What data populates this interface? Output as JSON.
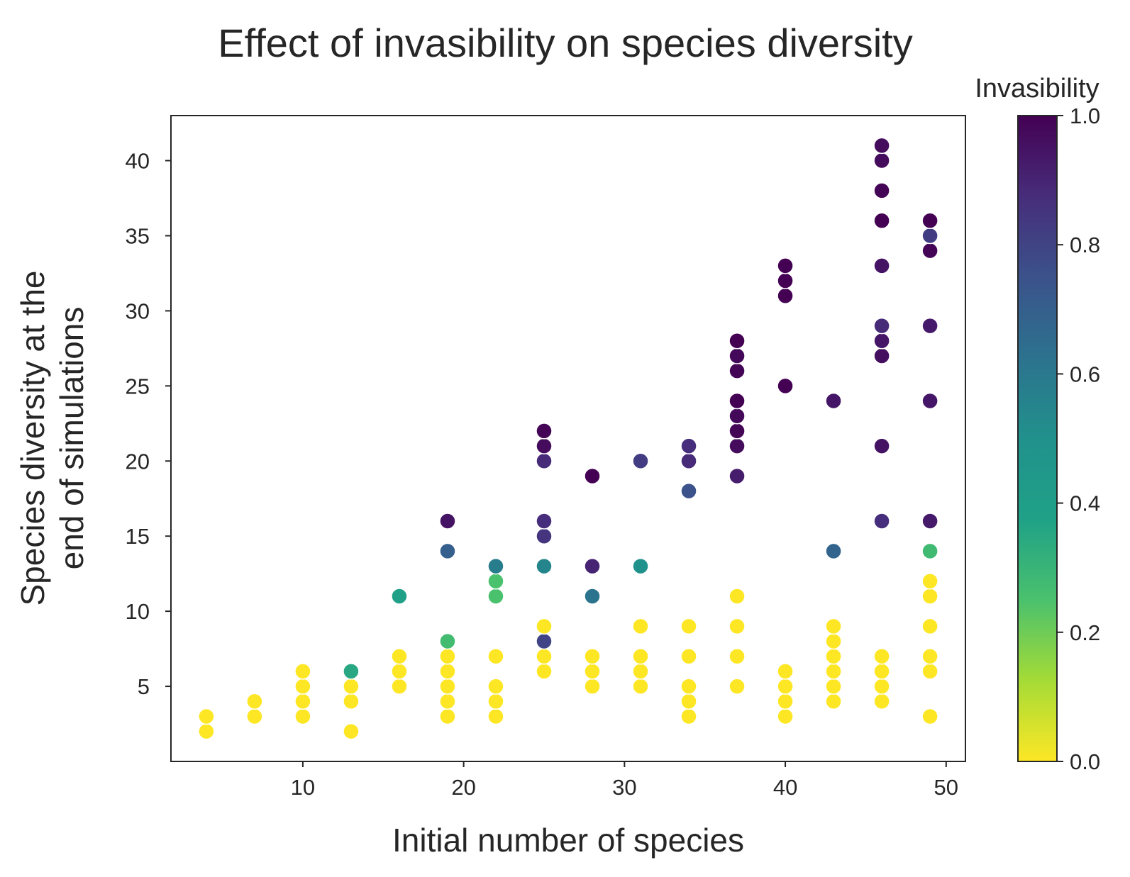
{
  "chart_data": {
    "type": "scatter",
    "title": "Effect of invasibility on species diversity",
    "xlabel": "Initial number of species",
    "ylabel": [
      "Species diversity at the",
      "end of simulations"
    ],
    "xlim": [
      1.8,
      51.2
    ],
    "ylim": [
      0,
      43
    ],
    "xticks": [
      10,
      20,
      30,
      40,
      50
    ],
    "yticks": [
      5,
      10,
      15,
      20,
      25,
      30,
      35,
      40
    ],
    "grid": false,
    "colorbar": {
      "title": "Invasibility",
      "colormap": "viridis",
      "reversed": true,
      "range": [
        0.0,
        1.0
      ],
      "ticks": [
        "0.0",
        "0.2",
        "0.4",
        "0.6",
        "0.8",
        "1.0"
      ]
    },
    "points": [
      {
        "x": 4,
        "y": 2,
        "c": 0.0
      },
      {
        "x": 4,
        "y": 3,
        "c": 0.0
      },
      {
        "x": 7,
        "y": 3,
        "c": 0.0
      },
      {
        "x": 7,
        "y": 4,
        "c": 0.0
      },
      {
        "x": 10,
        "y": 3,
        "c": 0.0
      },
      {
        "x": 10,
        "y": 4,
        "c": 0.0
      },
      {
        "x": 10,
        "y": 5,
        "c": 0.0
      },
      {
        "x": 10,
        "y": 6,
        "c": 0.0
      },
      {
        "x": 13,
        "y": 2,
        "c": 0.0
      },
      {
        "x": 13,
        "y": 4,
        "c": 0.0
      },
      {
        "x": 13,
        "y": 5,
        "c": 0.0
      },
      {
        "x": 13,
        "y": 6,
        "c": 0.35
      },
      {
        "x": 16,
        "y": 5,
        "c": 0.0
      },
      {
        "x": 16,
        "y": 6,
        "c": 0.0
      },
      {
        "x": 16,
        "y": 7,
        "c": 0.0
      },
      {
        "x": 16,
        "y": 11,
        "c": 0.38
      },
      {
        "x": 19,
        "y": 3,
        "c": 0.0
      },
      {
        "x": 19,
        "y": 4,
        "c": 0.0
      },
      {
        "x": 19,
        "y": 5,
        "c": 0.0
      },
      {
        "x": 19,
        "y": 6,
        "c": 0.0
      },
      {
        "x": 19,
        "y": 7,
        "c": 0.0
      },
      {
        "x": 19,
        "y": 8,
        "c": 0.27
      },
      {
        "x": 19,
        "y": 14,
        "c": 0.7
      },
      {
        "x": 19,
        "y": 16,
        "c": 0.95
      },
      {
        "x": 22,
        "y": 3,
        "c": 0.0
      },
      {
        "x": 22,
        "y": 4,
        "c": 0.0
      },
      {
        "x": 22,
        "y": 5,
        "c": 0.0
      },
      {
        "x": 22,
        "y": 7,
        "c": 0.0
      },
      {
        "x": 22,
        "y": 11,
        "c": 0.25
      },
      {
        "x": 22,
        "y": 12,
        "c": 0.25
      },
      {
        "x": 22,
        "y": 13,
        "c": 0.58
      },
      {
        "x": 25,
        "y": 6,
        "c": 0.0
      },
      {
        "x": 25,
        "y": 7,
        "c": 0.0
      },
      {
        "x": 25,
        "y": 8,
        "c": 0.8
      },
      {
        "x": 25,
        "y": 9,
        "c": 0.0
      },
      {
        "x": 25,
        "y": 13,
        "c": 0.55
      },
      {
        "x": 25,
        "y": 15,
        "c": 0.85
      },
      {
        "x": 25,
        "y": 16,
        "c": 0.87
      },
      {
        "x": 25,
        "y": 20,
        "c": 0.88
      },
      {
        "x": 25,
        "y": 21,
        "c": 0.97
      },
      {
        "x": 25,
        "y": 22,
        "c": 0.99
      },
      {
        "x": 28,
        "y": 5,
        "c": 0.0
      },
      {
        "x": 28,
        "y": 6,
        "c": 0.0
      },
      {
        "x": 28,
        "y": 7,
        "c": 0.0
      },
      {
        "x": 28,
        "y": 11,
        "c": 0.62
      },
      {
        "x": 28,
        "y": 13,
        "c": 0.9
      },
      {
        "x": 28,
        "y": 19,
        "c": 1.0
      },
      {
        "x": 31,
        "y": 5,
        "c": 0.0
      },
      {
        "x": 31,
        "y": 6,
        "c": 0.0
      },
      {
        "x": 31,
        "y": 7,
        "c": 0.0
      },
      {
        "x": 31,
        "y": 9,
        "c": 0.0
      },
      {
        "x": 31,
        "y": 13,
        "c": 0.5
      },
      {
        "x": 31,
        "y": 20,
        "c": 0.82
      },
      {
        "x": 34,
        "y": 3,
        "c": 0.0
      },
      {
        "x": 34,
        "y": 4,
        "c": 0.0
      },
      {
        "x": 34,
        "y": 5,
        "c": 0.0
      },
      {
        "x": 34,
        "y": 7,
        "c": 0.0
      },
      {
        "x": 34,
        "y": 9,
        "c": 0.0
      },
      {
        "x": 34,
        "y": 18,
        "c": 0.75
      },
      {
        "x": 34,
        "y": 20,
        "c": 0.88
      },
      {
        "x": 34,
        "y": 21,
        "c": 0.87
      },
      {
        "x": 37,
        "y": 5,
        "c": 0.0
      },
      {
        "x": 37,
        "y": 7,
        "c": 0.0
      },
      {
        "x": 37,
        "y": 9,
        "c": 0.0
      },
      {
        "x": 37,
        "y": 11,
        "c": 0.0
      },
      {
        "x": 37,
        "y": 19,
        "c": 0.92
      },
      {
        "x": 37,
        "y": 21,
        "c": 0.97
      },
      {
        "x": 37,
        "y": 22,
        "c": 0.99
      },
      {
        "x": 37,
        "y": 23,
        "c": 0.98
      },
      {
        "x": 37,
        "y": 24,
        "c": 1.0
      },
      {
        "x": 37,
        "y": 26,
        "c": 0.99
      },
      {
        "x": 37,
        "y": 27,
        "c": 0.98
      },
      {
        "x": 37,
        "y": 28,
        "c": 1.0
      },
      {
        "x": 40,
        "y": 3,
        "c": 0.0
      },
      {
        "x": 40,
        "y": 4,
        "c": 0.0
      },
      {
        "x": 40,
        "y": 5,
        "c": 0.0
      },
      {
        "x": 40,
        "y": 6,
        "c": 0.0
      },
      {
        "x": 40,
        "y": 25,
        "c": 1.0
      },
      {
        "x": 40,
        "y": 31,
        "c": 1.0
      },
      {
        "x": 40,
        "y": 32,
        "c": 1.0
      },
      {
        "x": 40,
        "y": 33,
        "c": 1.0
      },
      {
        "x": 43,
        "y": 4,
        "c": 0.0
      },
      {
        "x": 43,
        "y": 5,
        "c": 0.0
      },
      {
        "x": 43,
        "y": 6,
        "c": 0.0
      },
      {
        "x": 43,
        "y": 7,
        "c": 0.0
      },
      {
        "x": 43,
        "y": 8,
        "c": 0.0
      },
      {
        "x": 43,
        "y": 9,
        "c": 0.0
      },
      {
        "x": 43,
        "y": 14,
        "c": 0.68
      },
      {
        "x": 43,
        "y": 24,
        "c": 0.94
      },
      {
        "x": 46,
        "y": 4,
        "c": 0.0
      },
      {
        "x": 46,
        "y": 5,
        "c": 0.0
      },
      {
        "x": 46,
        "y": 6,
        "c": 0.0
      },
      {
        "x": 46,
        "y": 7,
        "c": 0.0
      },
      {
        "x": 46,
        "y": 16,
        "c": 0.87
      },
      {
        "x": 46,
        "y": 21,
        "c": 0.95
      },
      {
        "x": 46,
        "y": 27,
        "c": 0.96
      },
      {
        "x": 46,
        "y": 28,
        "c": 0.94
      },
      {
        "x": 46,
        "y": 29,
        "c": 0.88
      },
      {
        "x": 46,
        "y": 33,
        "c": 0.95
      },
      {
        "x": 46,
        "y": 36,
        "c": 1.0
      },
      {
        "x": 46,
        "y": 38,
        "c": 0.99
      },
      {
        "x": 46,
        "y": 40,
        "c": 0.97
      },
      {
        "x": 46,
        "y": 41,
        "c": 0.97
      },
      {
        "x": 49,
        "y": 3,
        "c": 0.0
      },
      {
        "x": 49,
        "y": 6,
        "c": 0.0
      },
      {
        "x": 49,
        "y": 7,
        "c": 0.0
      },
      {
        "x": 49,
        "y": 9,
        "c": 0.0
      },
      {
        "x": 49,
        "y": 11,
        "c": 0.0
      },
      {
        "x": 49,
        "y": 12,
        "c": 0.0
      },
      {
        "x": 49,
        "y": 14,
        "c": 0.28
      },
      {
        "x": 49,
        "y": 16,
        "c": 0.93
      },
      {
        "x": 49,
        "y": 24,
        "c": 0.94
      },
      {
        "x": 49,
        "y": 29,
        "c": 0.93
      },
      {
        "x": 49,
        "y": 34,
        "c": 0.99
      },
      {
        "x": 49,
        "y": 35,
        "c": 0.82
      },
      {
        "x": 49,
        "y": 36,
        "c": 1.0
      }
    ]
  }
}
